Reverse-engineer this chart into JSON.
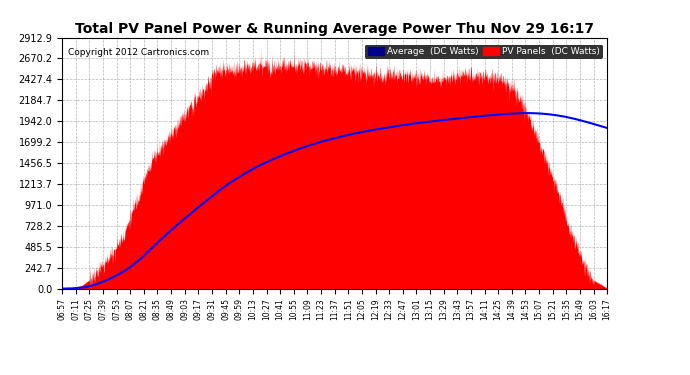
{
  "title": "Total PV Panel Power & Running Average Power Thu Nov 29 16:17",
  "copyright": "Copyright 2012 Cartronics.com",
  "ylabel_values": [
    0.0,
    242.7,
    485.5,
    728.2,
    971.0,
    1213.7,
    1456.5,
    1699.2,
    1942.0,
    2184.7,
    2427.4,
    2670.2,
    2912.9
  ],
  "ymax": 2912.9,
  "bg_color": "#ffffff",
  "plot_bg_color": "#ffffff",
  "grid_color": "#888888",
  "pv_fill_color": "#ff0000",
  "avg_line_color": "#0000ff",
  "legend_avg_bg": "#00008B",
  "legend_pv_bg": "#ff0000",
  "x_labels": [
    "06:57",
    "07:11",
    "07:25",
    "07:39",
    "07:53",
    "08:07",
    "08:21",
    "08:35",
    "08:49",
    "09:03",
    "09:17",
    "09:31",
    "09:45",
    "09:59",
    "10:13",
    "10:27",
    "10:41",
    "10:55",
    "11:09",
    "11:23",
    "11:37",
    "11:51",
    "12:05",
    "12:19",
    "12:33",
    "12:47",
    "13:01",
    "13:15",
    "13:29",
    "13:43",
    "13:57",
    "14:11",
    "14:25",
    "14:39",
    "14:53",
    "15:07",
    "15:21",
    "15:35",
    "15:49",
    "16:03",
    "16:17"
  ],
  "n_xlabels": 41
}
